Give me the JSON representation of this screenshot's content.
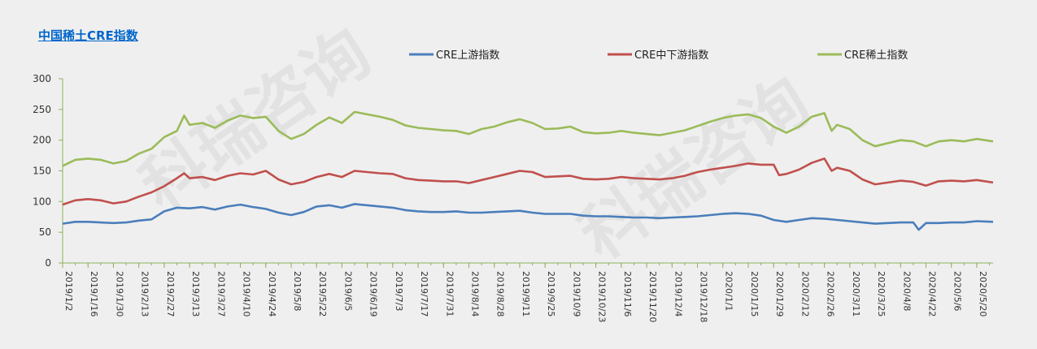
{
  "chart_data": {
    "type": "line",
    "title": "中国稀土CRE指数",
    "ylim": [
      0,
      300
    ],
    "yticks": [
      0,
      50,
      100,
      150,
      200,
      250,
      300
    ],
    "x_tick_labels": [
      "2019/1/2",
      "2019/1/16",
      "2019/1/30",
      "2019/2/13",
      "2019/2/27",
      "2019/3/13",
      "2019/3/27",
      "2019/4/10",
      "2019/4/24",
      "2019/5/8",
      "2019/5/22",
      "2019/6/5",
      "2019/6/19",
      "2019/7/3",
      "2019/7/17",
      "2019/7/31",
      "2019/8/14",
      "2019/8/28",
      "2019/9/11",
      "2019/9/25",
      "2019/10/9",
      "2019/10/23",
      "2019/11/6",
      "2019/11/20",
      "2019/12/4",
      "2019/12/18",
      "2020/1/1",
      "2020/1/15",
      "2020/1/29",
      "2020/2/12",
      "2020/2/26",
      "2020/3/11",
      "2020/3/25",
      "2020/4/8",
      "2020/4/22",
      "2020/5/6",
      "2020/5/20"
    ],
    "x_end": "2020/5/29",
    "grid": false,
    "legend_position": "top",
    "series": [
      {
        "name": "CRE上游指数",
        "color": "#4a7ebb",
        "points": [
          [
            "2019/1/2",
            64
          ],
          [
            "2019/1/9",
            67
          ],
          [
            "2019/1/16",
            67
          ],
          [
            "2019/1/23",
            66
          ],
          [
            "2019/1/30",
            65
          ],
          [
            "2019/2/6",
            66
          ],
          [
            "2019/2/13",
            69
          ],
          [
            "2019/2/20",
            71
          ],
          [
            "2019/2/27",
            84
          ],
          [
            "2019/3/6",
            90
          ],
          [
            "2019/3/13",
            89
          ],
          [
            "2019/3/20",
            91
          ],
          [
            "2019/3/27",
            87
          ],
          [
            "2019/4/3",
            92
          ],
          [
            "2019/4/10",
            95
          ],
          [
            "2019/4/17",
            91
          ],
          [
            "2019/4/24",
            88
          ],
          [
            "2019/5/1",
            82
          ],
          [
            "2019/5/8",
            78
          ],
          [
            "2019/5/15",
            83
          ],
          [
            "2019/5/22",
            92
          ],
          [
            "2019/5/29",
            94
          ],
          [
            "2019/6/5",
            90
          ],
          [
            "2019/6/12",
            96
          ],
          [
            "2019/6/19",
            94
          ],
          [
            "2019/6/26",
            92
          ],
          [
            "2019/7/3",
            90
          ],
          [
            "2019/7/10",
            86
          ],
          [
            "2019/7/17",
            84
          ],
          [
            "2019/7/24",
            83
          ],
          [
            "2019/7/31",
            83
          ],
          [
            "2019/8/7",
            84
          ],
          [
            "2019/8/14",
            82
          ],
          [
            "2019/8/21",
            82
          ],
          [
            "2019/8/28",
            83
          ],
          [
            "2019/9/4",
            84
          ],
          [
            "2019/9/11",
            85
          ],
          [
            "2019/9/18",
            82
          ],
          [
            "2019/9/25",
            80
          ],
          [
            "2019/10/2",
            80
          ],
          [
            "2019/10/9",
            80
          ],
          [
            "2019/10/16",
            77
          ],
          [
            "2019/10/23",
            76
          ],
          [
            "2019/10/30",
            76
          ],
          [
            "2019/11/6",
            75
          ],
          [
            "2019/11/13",
            74
          ],
          [
            "2019/11/20",
            74
          ],
          [
            "2019/11/27",
            73
          ],
          [
            "2019/12/4",
            74
          ],
          [
            "2019/12/11",
            75
          ],
          [
            "2019/12/18",
            76
          ],
          [
            "2019/12/25",
            78
          ],
          [
            "2020/1/1",
            80
          ],
          [
            "2020/1/8",
            81
          ],
          [
            "2020/1/15",
            80
          ],
          [
            "2020/1/22",
            77
          ],
          [
            "2020/1/29",
            70
          ],
          [
            "2020/2/5",
            67
          ],
          [
            "2020/2/12",
            70
          ],
          [
            "2020/2/19",
            73
          ],
          [
            "2020/2/26",
            72
          ],
          [
            "2020/3/4",
            70
          ],
          [
            "2020/3/11",
            68
          ],
          [
            "2020/3/18",
            66
          ],
          [
            "2020/3/25",
            64
          ],
          [
            "2020/4/1",
            65
          ],
          [
            "2020/4/8",
            66
          ],
          [
            "2020/4/15",
            66
          ],
          [
            "2020/4/18",
            54
          ],
          [
            "2020/4/22",
            65
          ],
          [
            "2020/4/29",
            65
          ],
          [
            "2020/5/6",
            66
          ],
          [
            "2020/5/13",
            66
          ],
          [
            "2020/5/20",
            68
          ],
          [
            "2020/5/29",
            67
          ]
        ]
      },
      {
        "name": "CRE中下游指数",
        "color": "#c0504d",
        "points": [
          [
            "2019/1/2",
            95
          ],
          [
            "2019/1/9",
            102
          ],
          [
            "2019/1/16",
            104
          ],
          [
            "2019/1/23",
            102
          ],
          [
            "2019/1/30",
            97
          ],
          [
            "2019/2/6",
            100
          ],
          [
            "2019/2/13",
            108
          ],
          [
            "2019/2/20",
            115
          ],
          [
            "2019/2/27",
            125
          ],
          [
            "2019/3/6",
            138
          ],
          [
            "2019/3/10",
            146
          ],
          [
            "2019/3/13",
            138
          ],
          [
            "2019/3/20",
            140
          ],
          [
            "2019/3/27",
            135
          ],
          [
            "2019/4/3",
            142
          ],
          [
            "2019/4/10",
            146
          ],
          [
            "2019/4/17",
            144
          ],
          [
            "2019/4/24",
            150
          ],
          [
            "2019/5/1",
            136
          ],
          [
            "2019/5/8",
            128
          ],
          [
            "2019/5/15",
            132
          ],
          [
            "2019/5/22",
            140
          ],
          [
            "2019/5/29",
            145
          ],
          [
            "2019/6/5",
            140
          ],
          [
            "2019/6/12",
            150
          ],
          [
            "2019/6/19",
            148
          ],
          [
            "2019/6/26",
            146
          ],
          [
            "2019/7/3",
            145
          ],
          [
            "2019/7/10",
            138
          ],
          [
            "2019/7/17",
            135
          ],
          [
            "2019/7/24",
            134
          ],
          [
            "2019/7/31",
            133
          ],
          [
            "2019/8/7",
            133
          ],
          [
            "2019/8/14",
            130
          ],
          [
            "2019/8/21",
            135
          ],
          [
            "2019/8/28",
            140
          ],
          [
            "2019/9/4",
            145
          ],
          [
            "2019/9/11",
            150
          ],
          [
            "2019/9/18",
            148
          ],
          [
            "2019/9/25",
            140
          ],
          [
            "2019/10/2",
            141
          ],
          [
            "2019/10/9",
            142
          ],
          [
            "2019/10/16",
            137
          ],
          [
            "2019/10/23",
            136
          ],
          [
            "2019/10/30",
            137
          ],
          [
            "2019/11/6",
            140
          ],
          [
            "2019/11/13",
            138
          ],
          [
            "2019/11/20",
            137
          ],
          [
            "2019/11/27",
            136
          ],
          [
            "2019/12/4",
            138
          ],
          [
            "2019/12/11",
            142
          ],
          [
            "2019/12/18",
            148
          ],
          [
            "2019/12/25",
            152
          ],
          [
            "2020/1/1",
            155
          ],
          [
            "2020/1/8",
            158
          ],
          [
            "2020/1/15",
            162
          ],
          [
            "2020/1/22",
            160
          ],
          [
            "2020/1/29",
            160
          ],
          [
            "2020/2/1",
            143
          ],
          [
            "2020/2/5",
            145
          ],
          [
            "2020/2/12",
            152
          ],
          [
            "2020/2/19",
            163
          ],
          [
            "2020/2/26",
            170
          ],
          [
            "2020/3/1",
            150
          ],
          [
            "2020/3/4",
            155
          ],
          [
            "2020/3/11",
            150
          ],
          [
            "2020/3/18",
            136
          ],
          [
            "2020/3/25",
            128
          ],
          [
            "2020/4/1",
            131
          ],
          [
            "2020/4/8",
            134
          ],
          [
            "2020/4/15",
            132
          ],
          [
            "2020/4/22",
            126
          ],
          [
            "2020/4/29",
            133
          ],
          [
            "2020/5/6",
            134
          ],
          [
            "2020/5/13",
            133
          ],
          [
            "2020/5/20",
            135
          ],
          [
            "2020/5/29",
            131
          ]
        ]
      },
      {
        "name": "CRE稀土指数",
        "color": "#9bbb59",
        "points": [
          [
            "2019/1/2",
            158
          ],
          [
            "2019/1/9",
            168
          ],
          [
            "2019/1/16",
            170
          ],
          [
            "2019/1/23",
            168
          ],
          [
            "2019/1/30",
            162
          ],
          [
            "2019/2/6",
            166
          ],
          [
            "2019/2/13",
            178
          ],
          [
            "2019/2/20",
            186
          ],
          [
            "2019/2/27",
            205
          ],
          [
            "2019/3/6",
            215
          ],
          [
            "2019/3/10",
            240
          ],
          [
            "2019/3/13",
            225
          ],
          [
            "2019/3/20",
            228
          ],
          [
            "2019/3/27",
            220
          ],
          [
            "2019/4/3",
            232
          ],
          [
            "2019/4/10",
            240
          ],
          [
            "2019/4/17",
            236
          ],
          [
            "2019/4/24",
            238
          ],
          [
            "2019/5/1",
            215
          ],
          [
            "2019/5/8",
            202
          ],
          [
            "2019/5/15",
            210
          ],
          [
            "2019/5/22",
            225
          ],
          [
            "2019/5/29",
            237
          ],
          [
            "2019/6/5",
            228
          ],
          [
            "2019/6/12",
            246
          ],
          [
            "2019/6/19",
            242
          ],
          [
            "2019/6/26",
            238
          ],
          [
            "2019/7/3",
            233
          ],
          [
            "2019/7/10",
            224
          ],
          [
            "2019/7/17",
            220
          ],
          [
            "2019/7/24",
            218
          ],
          [
            "2019/7/31",
            216
          ],
          [
            "2019/8/7",
            215
          ],
          [
            "2019/8/14",
            210
          ],
          [
            "2019/8/21",
            218
          ],
          [
            "2019/8/28",
            222
          ],
          [
            "2019/9/4",
            229
          ],
          [
            "2019/9/11",
            234
          ],
          [
            "2019/9/18",
            228
          ],
          [
            "2019/9/25",
            218
          ],
          [
            "2019/10/2",
            219
          ],
          [
            "2019/10/9",
            222
          ],
          [
            "2019/10/16",
            213
          ],
          [
            "2019/10/23",
            211
          ],
          [
            "2019/10/30",
            212
          ],
          [
            "2019/11/6",
            215
          ],
          [
            "2019/11/13",
            212
          ],
          [
            "2019/11/20",
            210
          ],
          [
            "2019/11/27",
            208
          ],
          [
            "2019/12/4",
            212
          ],
          [
            "2019/12/11",
            216
          ],
          [
            "2019/12/18",
            223
          ],
          [
            "2019/12/25",
            230
          ],
          [
            "2020/1/1",
            236
          ],
          [
            "2020/1/8",
            240
          ],
          [
            "2020/1/15",
            242
          ],
          [
            "2020/1/22",
            236
          ],
          [
            "2020/1/29",
            222
          ],
          [
            "2020/2/5",
            212
          ],
          [
            "2020/2/12",
            222
          ],
          [
            "2020/2/19",
            238
          ],
          [
            "2020/2/26",
            244
          ],
          [
            "2020/3/1",
            215
          ],
          [
            "2020/3/4",
            225
          ],
          [
            "2020/3/11",
            218
          ],
          [
            "2020/3/18",
            200
          ],
          [
            "2020/3/25",
            190
          ],
          [
            "2020/4/1",
            195
          ],
          [
            "2020/4/8",
            200
          ],
          [
            "2020/4/15",
            198
          ],
          [
            "2020/4/22",
            190
          ],
          [
            "2020/4/29",
            198
          ],
          [
            "2020/5/6",
            200
          ],
          [
            "2020/5/13",
            198
          ],
          [
            "2020/5/20",
            202
          ],
          [
            "2020/5/29",
            198
          ]
        ]
      }
    ]
  },
  "watermark": {
    "text": "科瑞咨询"
  }
}
